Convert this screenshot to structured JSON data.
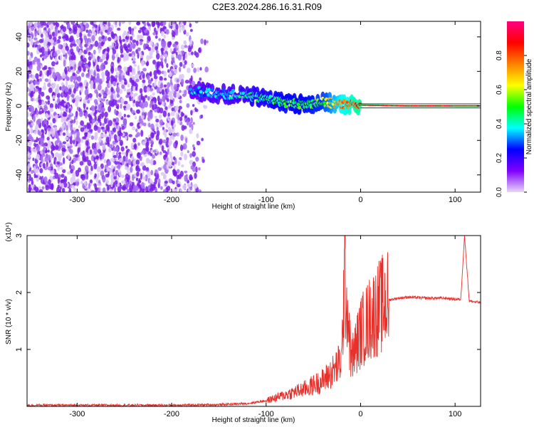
{
  "title": "C2E3.2024.286.16.31.R09",
  "chart_data": [
    {
      "type": "heatmap",
      "xlabel": "Height of straight line (km)",
      "ylabel": "Frequency (Hz)",
      "xlim": [
        -353,
        127
      ],
      "ylim": [
        -50,
        49
      ],
      "xticks": [
        -300,
        -200,
        -100,
        0,
        100
      ],
      "yticks": [
        -40,
        -20,
        0,
        20,
        40
      ],
      "colorbar": {
        "label": "Normalized spectral amplitude",
        "range": [
          0,
          1
        ],
        "ticks": [
          0.0,
          0.2,
          0.4,
          0.6,
          0.8
        ],
        "colors": [
          "#e8d8f8",
          "#8000ff",
          "#0000ff",
          "#00ffff",
          "#00ff00",
          "#ffff00",
          "#ff8000",
          "#ff0000",
          "#ff0080"
        ]
      },
      "track": [
        {
          "x": -180,
          "y": 9,
          "amp": 0.3
        },
        {
          "x": -150,
          "y": 7,
          "amp": 0.35
        },
        {
          "x": -120,
          "y": 6,
          "amp": 0.4
        },
        {
          "x": -100,
          "y": 4,
          "amp": 0.45
        },
        {
          "x": -80,
          "y": 2,
          "amp": 0.5
        },
        {
          "x": -60,
          "y": 1,
          "amp": 0.5
        },
        {
          "x": -40,
          "y": 2,
          "amp": 0.55
        },
        {
          "x": -20,
          "y": 1,
          "amp": 0.75
        },
        {
          "x": 0,
          "y": 0.5,
          "amp": 0.85
        },
        {
          "x": 50,
          "y": 0,
          "amp": 0.88
        },
        {
          "x": 100,
          "y": 0,
          "amp": 0.9
        },
        {
          "x": 125,
          "y": 0,
          "amp": 0.9
        }
      ]
    },
    {
      "type": "line",
      "xlabel": "Height of straight line (km)",
      "ylabel": "SNR (10 * v/v)",
      "multiplier": "(x10⁴)",
      "xlim": [
        -353,
        127
      ],
      "ylim": [
        0,
        3
      ],
      "xticks": [
        -300,
        -200,
        -100,
        0,
        100
      ],
      "yticks": [
        1,
        2,
        3
      ],
      "color": "#e8302a",
      "x": [
        -353,
        -200,
        -150,
        -120,
        -100,
        -80,
        -60,
        -40,
        -30,
        -20,
        -17,
        -10,
        0,
        10,
        20,
        30,
        40,
        50,
        70,
        90,
        100,
        106,
        110,
        115,
        127
      ],
      "y": [
        0.02,
        0.02,
        0.03,
        0.05,
        0.1,
        0.2,
        0.3,
        0.45,
        0.6,
        0.8,
        2.45,
        0.8,
        1.3,
        1.55,
        1.75,
        1.87,
        1.9,
        1.92,
        1.9,
        1.9,
        1.88,
        1.88,
        3.0,
        1.85,
        1.82
      ]
    }
  ]
}
